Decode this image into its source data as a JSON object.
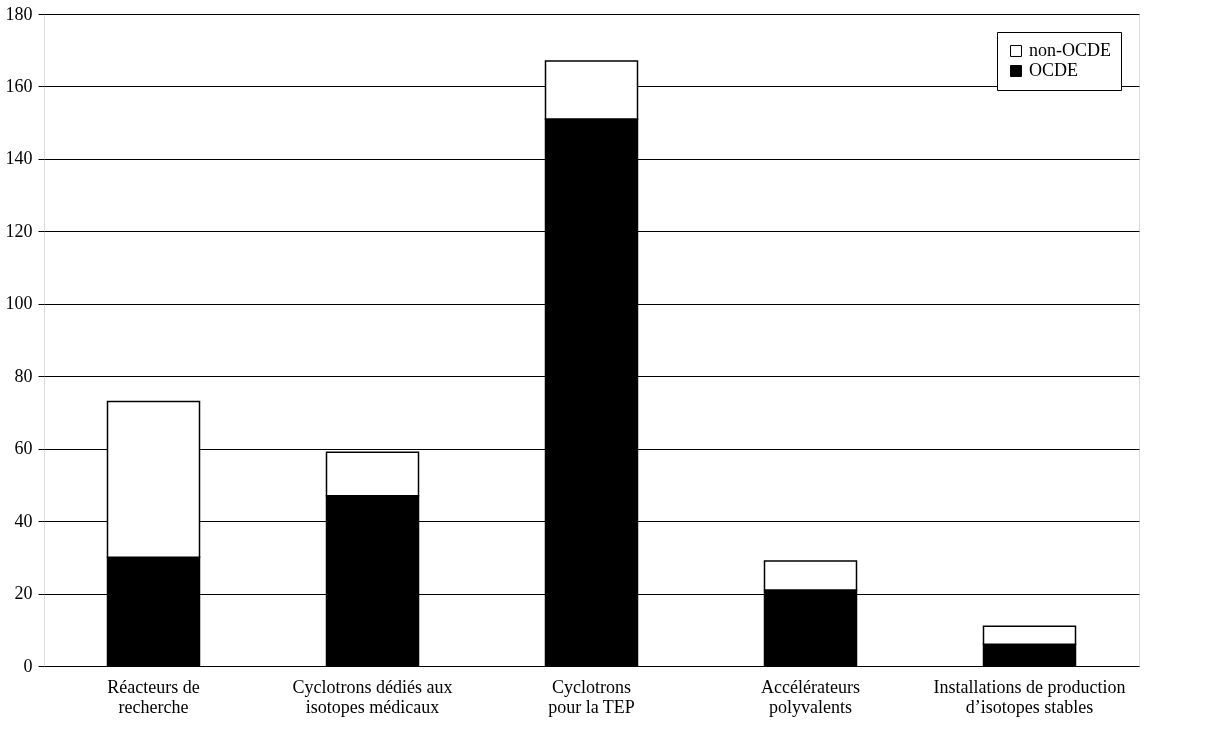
{
  "chart_data": {
    "type": "bar",
    "stacked": true,
    "categories": [
      "Réacteurs de\nrecherche",
      "Cyclotrons dédiés aux\nisotopes médicaux",
      "Cyclotrons\npour la TEP",
      "Accélérateurs\npolyvalents",
      "Installations de production\nd’isotopes stables"
    ],
    "series": [
      {
        "name": "OCDE",
        "color": "#000000",
        "values": [
          30,
          47,
          151,
          21,
          6
        ]
      },
      {
        "name": "non-OCDE",
        "color": "#ffffff",
        "values": [
          43,
          12,
          16,
          8,
          5
        ]
      }
    ],
    "ylim": [
      0,
      180
    ],
    "yticks": [
      0,
      20,
      40,
      60,
      80,
      100,
      120,
      140,
      160,
      180
    ],
    "grid": "y",
    "legend": "top right"
  }
}
